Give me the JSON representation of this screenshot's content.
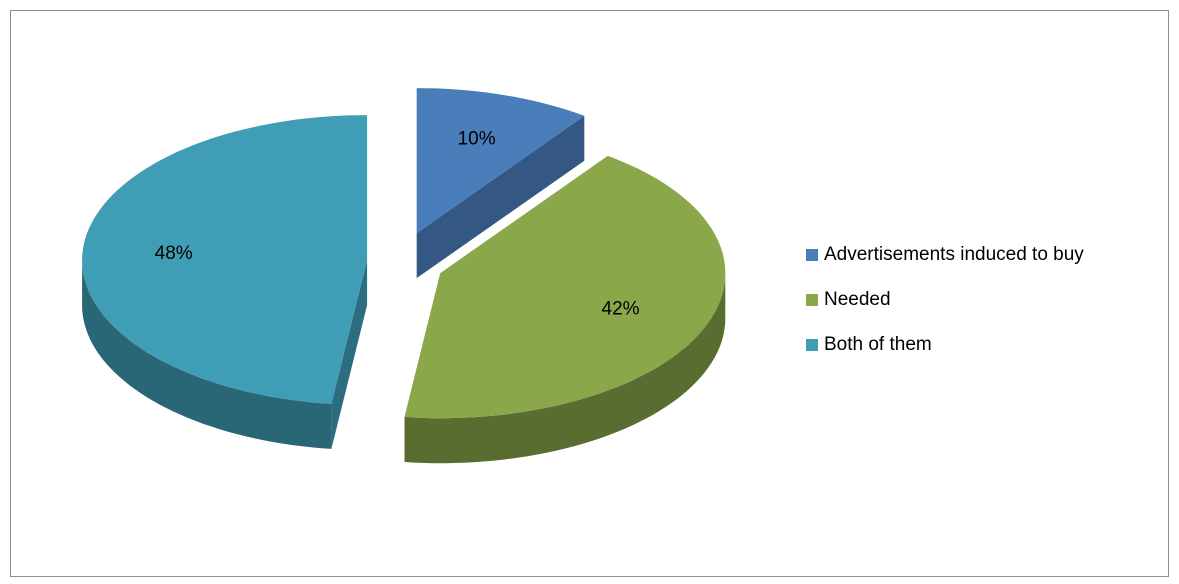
{
  "chart_data": {
    "type": "pie",
    "categories": [
      "Advertisements induced to buy",
      "Needed",
      "Both of them"
    ],
    "values": [
      10,
      42,
      48
    ],
    "value_labels": [
      "10%",
      "42%",
      "48%"
    ],
    "colors": [
      "#4a7ebb",
      "#8aa84a",
      "#3f9db5"
    ],
    "legend": "right"
  }
}
